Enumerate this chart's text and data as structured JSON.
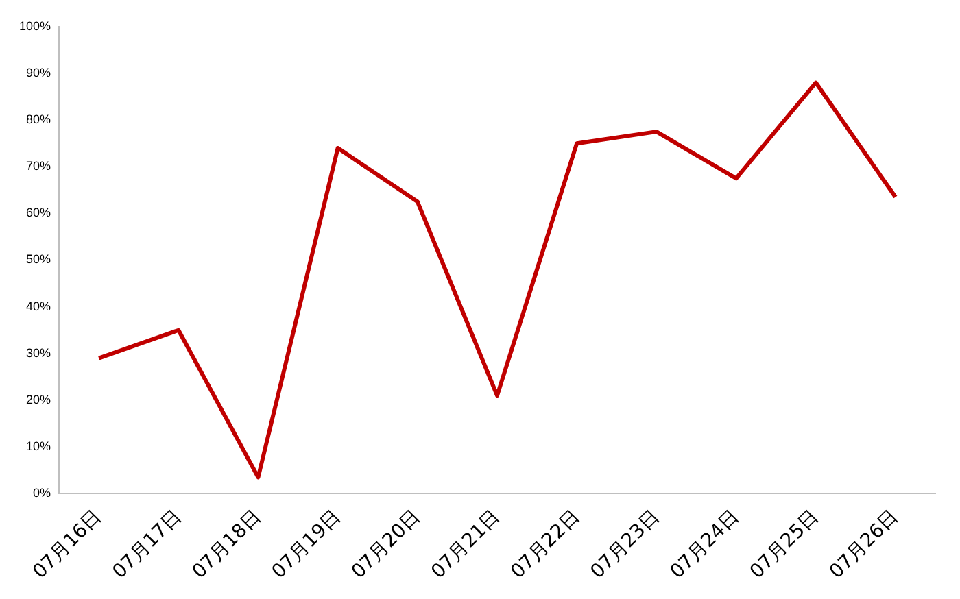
{
  "chart_data": {
    "type": "line",
    "categories": [
      "07月16日",
      "07月17日",
      "07月18日",
      "07月19日",
      "07月20日",
      "07月21日",
      "07月22日",
      "07月23日",
      "07月24日",
      "07月25日",
      "07月26日"
    ],
    "series": [
      {
        "color": "#c00000",
        "values": [
          29,
          35,
          3.5,
          74,
          62.5,
          21,
          75,
          77.5,
          67.5,
          88,
          63.5
        ]
      }
    ],
    "ylim": [
      0,
      100
    ],
    "yticks": [
      {
        "value": 0,
        "label": "0%"
      },
      {
        "value": 10,
        "label": "10%"
      },
      {
        "value": 20,
        "label": "20%"
      },
      {
        "value": 30,
        "label": "30%"
      },
      {
        "value": 40,
        "label": "40%"
      },
      {
        "value": 50,
        "label": "50%"
      },
      {
        "value": 60,
        "label": "60%"
      },
      {
        "value": 70,
        "label": "70%"
      },
      {
        "value": 80,
        "label": "80%"
      },
      {
        "value": 90,
        "label": "90%"
      },
      {
        "value": 100,
        "label": "100%"
      }
    ],
    "grid": false,
    "legend": false,
    "marker": "none",
    "line_style": "solid"
  }
}
